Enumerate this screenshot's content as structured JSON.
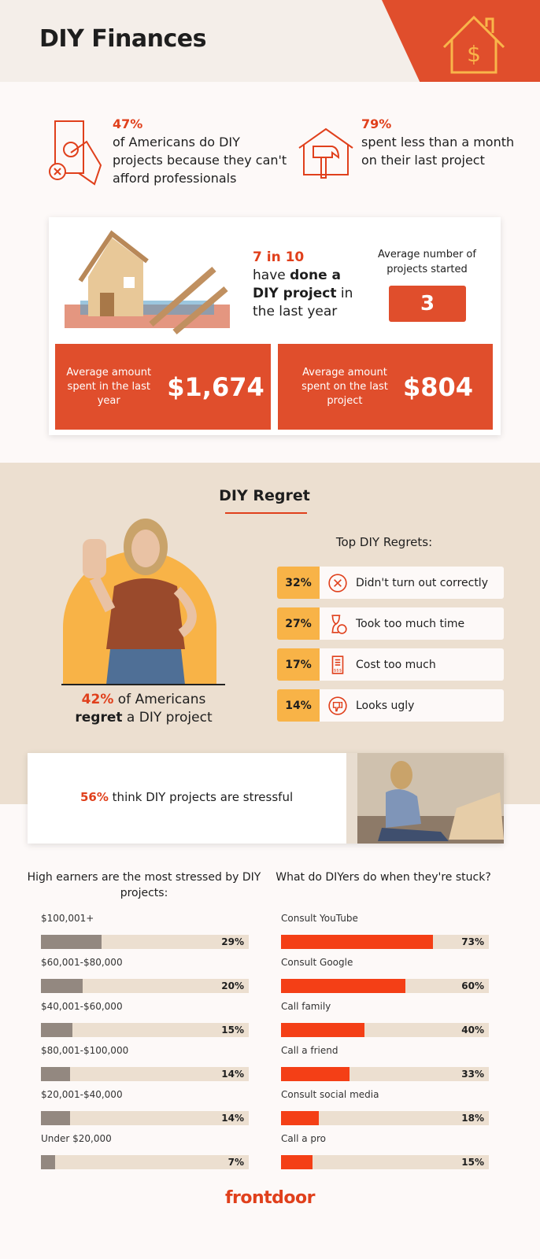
{
  "header": {
    "title": "DIY Finances",
    "icon": "house-dollar-icon"
  },
  "stats": [
    {
      "value": "47%",
      "text": "of Americans do DIY projects because they can't afford professionals",
      "icon": "hand-money-icon"
    },
    {
      "value": "79%",
      "text": "spent less than a month on their last project",
      "icon": "house-hammer-icon"
    }
  ],
  "card": {
    "headline_pre": "7 in 10",
    "headline_a": "have ",
    "headline_bold": "done a DIY project",
    "headline_b": " in the last year",
    "avg_projects_label": "Average number of projects started",
    "avg_projects_value": "3",
    "spent_year_label": "Average amount spent in the last year",
    "spent_year_value": "$1,674",
    "spent_last_label": "Average amount spent on the last project",
    "spent_last_value": "$804"
  },
  "regret": {
    "title": "DIY Regret",
    "caption_pct": "42%",
    "caption_a": " of Americans",
    "caption_bold": "regret",
    "caption_b": " a DIY project",
    "list_title": "Top DIY Regrets:",
    "items": [
      {
        "pct": "32%",
        "label": "Didn't turn out correctly",
        "icon": "x-circle-icon"
      },
      {
        "pct": "27%",
        "label": "Took too much time",
        "icon": "hourglass-icon"
      },
      {
        "pct": "17%",
        "label": "Cost too much",
        "icon": "receipt-icon"
      },
      {
        "pct": "14%",
        "label": "Looks ugly",
        "icon": "thumbs-down-icon"
      }
    ]
  },
  "stress": {
    "pct": "56%",
    "text": " think DIY projects are stressful"
  },
  "colors": {
    "accent": "#e04e2c",
    "yellow": "#f8b347",
    "gray_bar": "#938880",
    "red_bar": "#f43f16",
    "track": "#ecdfd0",
    "beige": "#ecdfd0"
  },
  "chart_data": [
    {
      "type": "bar",
      "orientation": "horizontal",
      "title": "High earners are the most stressed by DIY projects:",
      "categories": [
        "$100,001+",
        "$60,001-$80,000",
        "$40,001-$60,000",
        "$80,001-$100,000",
        "$20,001-$40,000",
        "Under $20,000"
      ],
      "values": [
        29,
        20,
        15,
        14,
        14,
        7
      ],
      "labels": [
        "29%",
        "20%",
        "15%",
        "14%",
        "14%",
        "7%"
      ],
      "xlim": [
        0,
        100
      ],
      "color": "#938880"
    },
    {
      "type": "bar",
      "orientation": "horizontal",
      "title": "What do DIYers do when they're stuck?",
      "categories": [
        "Consult YouTube",
        "Consult Google",
        "Call family",
        "Call a friend",
        "Consult social media",
        "Call a pro"
      ],
      "values": [
        73,
        60,
        40,
        33,
        18,
        15
      ],
      "labels": [
        "73%",
        "60%",
        "40%",
        "33%",
        "18%",
        "15%"
      ],
      "xlim": [
        0,
        100
      ],
      "color": "#f43f16"
    }
  ],
  "footer": {
    "logo": "frontdoor"
  }
}
